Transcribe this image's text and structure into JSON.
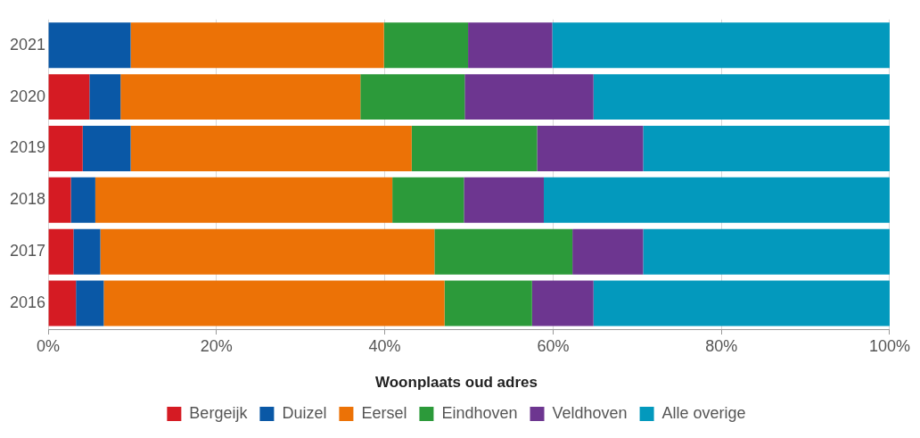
{
  "chart_data": {
    "type": "bar",
    "orientation": "horizontal",
    "stacked": true,
    "categories": [
      "2021",
      "2020",
      "2019",
      "2018",
      "2017",
      "2016"
    ],
    "series": [
      {
        "name": "Bergeijk",
        "color": "#d51b23",
        "values": [
          0,
          4.9,
          4.1,
          2.7,
          3.0,
          3.3
        ]
      },
      {
        "name": "Duizel",
        "color": "#0a58a6",
        "values": [
          9.8,
          3.7,
          5.7,
          2.9,
          3.2,
          3.3
        ]
      },
      {
        "name": "Eersel",
        "color": "#ec7206",
        "values": [
          30.1,
          28.5,
          33.4,
          35.3,
          39.7,
          40.5
        ]
      },
      {
        "name": "Eindhoven",
        "color": "#2c9a3a",
        "values": [
          10,
          12.4,
          14.9,
          8.5,
          16.4,
          10.4
        ]
      },
      {
        "name": "Veldhoven",
        "color": "#6d3690",
        "values": [
          10,
          15.3,
          12.6,
          9.5,
          8.4,
          7.3
        ]
      },
      {
        "name": "Alle overige",
        "color": "#0399bd",
        "values": [
          40.1,
          35.2,
          29.3,
          41.1,
          29.3,
          35.2
        ]
      }
    ],
    "xlim": [
      0,
      100
    ],
    "xticks": [
      {
        "value": 0,
        "label": "0%"
      },
      {
        "value": 20,
        "label": "20%"
      },
      {
        "value": 40,
        "label": "40%"
      },
      {
        "value": 60,
        "label": "60%"
      },
      {
        "value": 80,
        "label": "80%"
      },
      {
        "value": 100,
        "label": "100%"
      }
    ],
    "grid": "x",
    "legend": "bottom",
    "legend_title": "Woonplaats oud adres"
  }
}
